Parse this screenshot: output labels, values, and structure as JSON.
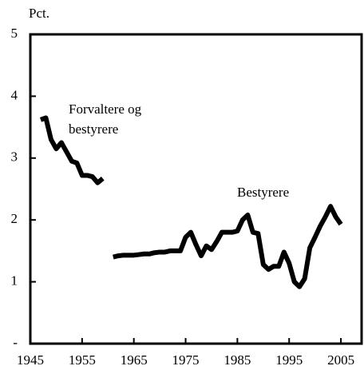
{
  "chart_data": {
    "type": "line",
    "ylabel": "Pct.",
    "xlim": [
      1945,
      2009
    ],
    "xticks": [
      1945,
      1955,
      1965,
      1975,
      1985,
      1995,
      2005
    ],
    "ylim": [
      0,
      5
    ],
    "yticks": [
      {
        "value": 0,
        "label": "-"
      },
      1,
      2,
      3,
      4,
      5
    ],
    "series": [
      {
        "name": "Forvaltere og bestyrere",
        "color": "#000000",
        "x": [
          1947,
          1948,
          1949,
          1950,
          1951,
          1952,
          1953,
          1954,
          1955,
          1956,
          1957,
          1958,
          1959
        ],
        "values": [
          3.62,
          3.65,
          3.3,
          3.15,
          3.25,
          3.1,
          2.95,
          2.92,
          2.72,
          2.72,
          2.7,
          2.6,
          2.67
        ]
      },
      {
        "name": "Bestyrere",
        "color": "#000000",
        "x": [
          1961,
          1962,
          1963,
          1964,
          1965,
          1966,
          1967,
          1968,
          1969,
          1970,
          1971,
          1972,
          1973,
          1974,
          1975,
          1976,
          1977,
          1978,
          1979,
          1980,
          1981,
          1982,
          1983,
          1984,
          1985,
          1986,
          1987,
          1988,
          1989,
          1990,
          1991,
          1992,
          1993,
          1994,
          1995,
          1996,
          1997,
          1998,
          1999,
          2000,
          2001,
          2002,
          2003,
          2004,
          2005
        ],
        "values": [
          1.4,
          1.42,
          1.43,
          1.43,
          1.43,
          1.44,
          1.45,
          1.45,
          1.47,
          1.48,
          1.48,
          1.5,
          1.5,
          1.5,
          1.72,
          1.8,
          1.6,
          1.42,
          1.58,
          1.52,
          1.65,
          1.8,
          1.8,
          1.8,
          1.82,
          2.0,
          2.08,
          1.8,
          1.78,
          1.28,
          1.2,
          1.25,
          1.25,
          1.48,
          1.3,
          1.0,
          0.92,
          1.05,
          1.55,
          1.72,
          1.9,
          2.05,
          2.22,
          2.05,
          1.93
        ]
      }
    ]
  }
}
